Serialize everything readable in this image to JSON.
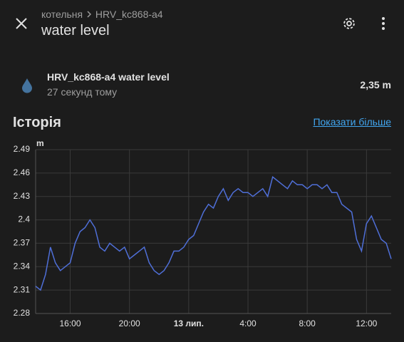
{
  "header": {
    "breadcrumb": [
      "котельня",
      "HRV_kc868-a4"
    ],
    "title": "water level"
  },
  "entity": {
    "name": "HRV_kc868-a4 water level",
    "last_changed": "27 секунд тому",
    "state": "2,35 m"
  },
  "history": {
    "title": "Історія",
    "more_link": "Показати більше"
  },
  "chart_data": {
    "type": "line",
    "y_unit": "m",
    "categories": [
      null,
      null,
      null,
      null,
      null,
      null,
      null,
      "16:00",
      null,
      null,
      null,
      null,
      null,
      null,
      null,
      null,
      null,
      null,
      null,
      "20:00",
      null,
      null,
      null,
      null,
      null,
      null,
      null,
      null,
      null,
      null,
      null,
      "13 лип.",
      null,
      null,
      null,
      null,
      null,
      null,
      null,
      null,
      null,
      null,
      null,
      "4:00",
      null,
      null,
      null,
      null,
      null,
      null,
      null,
      null,
      null,
      null,
      null,
      "8:00",
      null,
      null,
      null,
      null,
      null,
      null,
      null,
      null,
      null,
      null,
      null,
      "12:00",
      null,
      null,
      null,
      null,
      null
    ],
    "series": [
      {
        "color": "#4f6fd8",
        "values": [
          2.315,
          2.31,
          2.33,
          2.365,
          2.345,
          2.335,
          2.34,
          2.345,
          2.37,
          2.385,
          2.39,
          2.4,
          2.39,
          2.365,
          2.36,
          2.37,
          2.365,
          2.36,
          2.365,
          2.35,
          2.355,
          2.36,
          2.365,
          2.345,
          2.335,
          2.33,
          2.335,
          2.345,
          2.36,
          2.36,
          2.365,
          2.375,
          2.38,
          2.395,
          2.41,
          2.42,
          2.415,
          2.43,
          2.44,
          2.425,
          2.435,
          2.44,
          2.435,
          2.435,
          2.43,
          2.435,
          2.44,
          2.43,
          2.455,
          2.45,
          2.445,
          2.44,
          2.45,
          2.445,
          2.445,
          2.44,
          2.445,
          2.445,
          2.44,
          2.445,
          2.435,
          2.435,
          2.42,
          2.415,
          2.41,
          2.375,
          2.36,
          2.395,
          2.405,
          2.39,
          2.375,
          2.37,
          2.35
        ]
      }
    ],
    "ylim": [
      2.28,
      2.49
    ],
    "yticks": [
      2.28,
      2.31,
      2.34,
      2.37,
      2.4,
      2.43,
      2.46,
      2.49
    ],
    "grid": true
  }
}
